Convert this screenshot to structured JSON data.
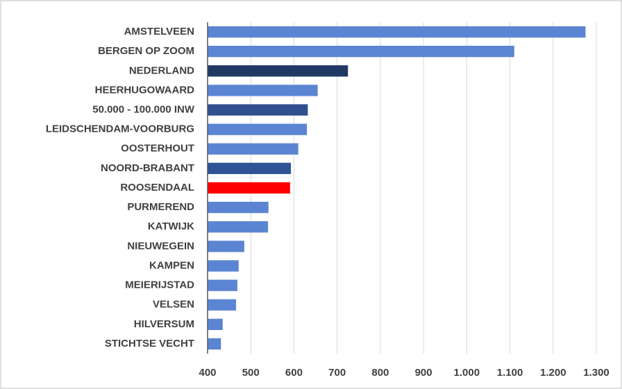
{
  "chart_data": {
    "type": "barh",
    "categories": [
      "AMSTELVEEN",
      "BERGEN OP ZOOM",
      "NEDERLAND",
      "HEERHUGOWAARD",
      "50.000 - 100.000 INW",
      "LEIDSCHENDAM-VOORBURG",
      "OOSTERHOUT",
      "NOORD-BRABANT",
      "ROOSENDAAL",
      "PURMEREND",
      "KATWIJK",
      "NIEUWEGEIN",
      "KAMPEN",
      "MEIERIJSTAD",
      "VELSEN",
      "HILVERSUM",
      "STICHTSE VECHT"
    ],
    "values": [
      1275,
      1110,
      725,
      655,
      632,
      630,
      610,
      593,
      591,
      541,
      540,
      485,
      472,
      469,
      466,
      435,
      431
    ],
    "colors": [
      "#5b85d2",
      "#5b85d2",
      "#1f3864",
      "#5b85d2",
      "#2f4f8f",
      "#5b85d2",
      "#5b85d2",
      "#2f5496",
      "#ff0000",
      "#5b85d2",
      "#5b85d2",
      "#5b85d2",
      "#5b85d2",
      "#5b85d2",
      "#5b85d2",
      "#5b85d2",
      "#5b85d2"
    ],
    "xlim": [
      400,
      1300
    ],
    "xticks": [
      400,
      500,
      600,
      700,
      800,
      900,
      {
        "value": 1000,
        "label": "1.000"
      },
      {
        "value": 1100,
        "label": "1.100"
      },
      {
        "value": 1200,
        "label": "1.200"
      },
      {
        "value": 1300,
        "label": "1.300"
      }
    ],
    "grid": true
  }
}
